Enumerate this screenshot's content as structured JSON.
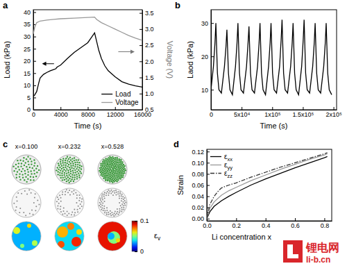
{
  "chart_data": [
    {
      "panel": "a",
      "type": "line",
      "x_label": "Time (s)",
      "y_label": "Load (kPa)",
      "y2_label": "Voltage (V)",
      "xlim": [
        0,
        16000
      ],
      "xticks": [
        0,
        4000,
        8000,
        12000,
        16000
      ],
      "ylim": [
        0,
        41
      ],
      "yticks": [
        0,
        5,
        10,
        15,
        20,
        25,
        30,
        35,
        40
      ],
      "y2lim": [
        0.5,
        3.6
      ],
      "y2ticks": [
        0.5,
        {
          "value": 1,
          "label": "1.0"
        },
        1.5,
        {
          "value": 2,
          "label": "2.0"
        },
        2.5,
        {
          "value": 3,
          "label": "3.0"
        },
        3.5
      ],
      "legend": "bottom-right",
      "series": [
        {
          "name": "Load",
          "color": "#000000",
          "line_style": "solid",
          "x": [
            0,
            200,
            500,
            800,
            1000,
            1500,
            2000,
            2500,
            3000,
            3300,
            3500,
            4000,
            5000,
            6000,
            7000,
            8000,
            8500,
            9000,
            9300,
            9600,
            10000,
            10500,
            11000,
            12000,
            13000,
            14000,
            15000,
            16000
          ],
          "values": [
            5.5,
            6,
            7.5,
            11,
            13,
            14.5,
            15.3,
            16,
            16.5,
            16.8,
            17.5,
            18.3,
            21,
            23.5,
            25.5,
            27.5,
            29.5,
            31.5,
            28,
            24.5,
            21,
            18,
            16,
            13.5,
            11.5,
            10.5,
            9.8,
            9.3
          ]
        },
        {
          "name": "Voltage",
          "color": "#999999",
          "line_style": "solid",
          "axis": "y2",
          "x": [
            0,
            200,
            500,
            1000,
            2000,
            3000,
            4000,
            6000,
            8000,
            9000,
            9300,
            10000,
            11000,
            12000,
            13000,
            14000,
            15000,
            16000
          ],
          "values": [
            2.85,
            3.05,
            3.2,
            3.25,
            3.28,
            3.3,
            3.32,
            3.34,
            3.36,
            3.37,
            3.3,
            3.2,
            3.1,
            3.0,
            2.9,
            2.8,
            2.72,
            2.65
          ]
        }
      ]
    },
    {
      "panel": "b",
      "type": "line",
      "x_label": "Time (s)",
      "y_label": "Laod (kPa)",
      "xlim": [
        0,
        205000
      ],
      "xticks": [
        0,
        {
          "value": 50000,
          "label": "5x10⁴"
        },
        {
          "value": 100000,
          "label": "1x10⁵"
        },
        {
          "value": 150000,
          "label": "1.5x10⁵"
        },
        {
          "value": 200000,
          "label": "2x10⁵"
        }
      ],
      "ylim": [
        4,
        34
      ],
      "yticks": [
        10,
        20,
        30
      ],
      "series": [
        {
          "color": "#000000",
          "line_style": "solid",
          "x": [
            0,
            4000,
            6500,
            8000,
            10500,
            13000,
            17000,
            22000,
            24500,
            26000,
            28500,
            31000,
            35000,
            40000,
            42500,
            44000,
            46500,
            49000,
            53000,
            58000,
            60500,
            62000,
            64500,
            67000,
            71000,
            76000,
            78500,
            80000,
            82500,
            85000,
            89000,
            94000,
            96500,
            98000,
            100500,
            103000,
            107000,
            112000,
            114500,
            116000,
            118500,
            121000,
            125000,
            130000,
            132500,
            134000,
            136500,
            139000,
            143000,
            148000,
            150500,
            152000,
            154500,
            157000,
            161000,
            166000,
            168500,
            170000,
            172500,
            175000,
            179000,
            184000,
            186500,
            188000,
            190500,
            193000,
            197000
          ],
          "values": [
            10,
            17,
            24,
            30,
            15,
            10,
            9,
            17,
            23,
            28,
            15,
            10,
            8.5,
            17,
            24,
            30,
            15,
            10,
            9,
            17,
            24,
            29,
            15,
            10,
            9,
            17,
            24,
            30,
            15,
            10,
            8.5,
            17,
            24,
            30,
            15,
            10,
            9,
            17,
            25,
            31,
            15,
            10,
            9,
            17,
            24,
            30,
            15,
            10,
            8.5,
            17,
            25,
            31,
            15,
            10,
            9,
            17,
            24,
            30,
            15,
            10,
            9,
            17,
            24,
            30,
            15,
            10,
            8.5
          ]
        }
      ]
    },
    {
      "panel": "c",
      "type": "image",
      "labels": [
        "x=0.100",
        "x=0.232",
        "x=0.528"
      ],
      "colorbar": {
        "range": [
          0,
          0.1
        ],
        "ticks": [
          0,
          0.1
        ],
        "label": "εv"
      }
    },
    {
      "panel": "d",
      "type": "line",
      "x_label": "Li concentration x",
      "y_label": "Strain",
      "xlim": [
        0,
        0.85
      ],
      "xticks": [
        {
          "value": 0,
          "label": "0.0"
        },
        0.2,
        0.4,
        0.6,
        0.8
      ],
      "ylim": [
        -0.004,
        0.124
      ],
      "yticks": [
        {
          "value": 0,
          "label": "0.00"
        },
        0.02,
        0.04,
        0.06,
        0.08,
        {
          "value": 0.1,
          "label": "0.10"
        },
        0.12
      ],
      "legend": "top-left",
      "series": [
        {
          "name": "εxx",
          "color": "#000000",
          "line_style": "solid",
          "x": [
            0,
            0.02,
            0.05,
            0.1,
            0.15,
            0.2,
            0.3,
            0.4,
            0.5,
            0.6,
            0.7,
            0.8,
            0.82
          ],
          "values": [
            0,
            0.012,
            0.022,
            0.032,
            0.04,
            0.047,
            0.06,
            0.071,
            0.081,
            0.091,
            0.1,
            0.109,
            0.111
          ]
        },
        {
          "name": "εyy",
          "color": "#999999",
          "line_style": "solid",
          "x": [
            0,
            0.02,
            0.05,
            0.1,
            0.15,
            0.2,
            0.3,
            0.4,
            0.5,
            0.6,
            0.7,
            0.8,
            0.82
          ],
          "values": [
            0,
            0.018,
            0.03,
            0.042,
            0.05,
            0.056,
            0.068,
            0.078,
            0.088,
            0.097,
            0.106,
            0.114,
            0.116
          ]
        },
        {
          "name": "εzz",
          "color": "#333333",
          "line_style": "dashdot",
          "x": [
            0,
            0.02,
            0.05,
            0.08,
            0.1,
            0.15,
            0.2,
            0.3,
            0.4,
            0.5,
            0.6,
            0.7,
            0.8,
            0.82
          ],
          "values": [
            0,
            0.025,
            0.04,
            0.05,
            0.055,
            0.06,
            0.064,
            0.074,
            0.083,
            0.092,
            0.1,
            0.108,
            0.116,
            0.118
          ]
        }
      ]
    }
  ],
  "watermark": {
    "text": "锂电网",
    "url": "li-b.cn"
  }
}
